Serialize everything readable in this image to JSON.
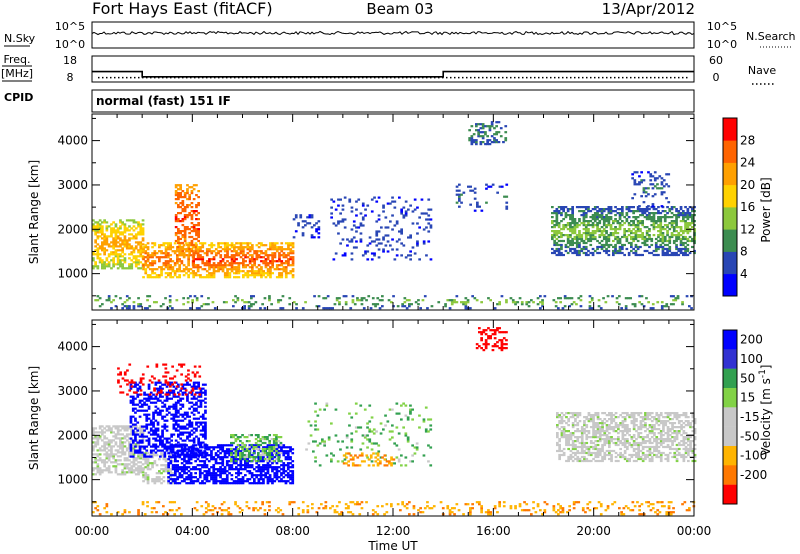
{
  "header": {
    "station": "Fort Hays East (fitACF)",
    "beam": "Beam 03",
    "date": "13/Apr/2012"
  },
  "noise_panel": {
    "left_label": "N.Sky",
    "right_label": "N.Search",
    "left_ticks": [
      "10^5",
      "10^0"
    ],
    "right_ticks": [
      "10^5",
      "10^0"
    ]
  },
  "freq_panel": {
    "left_label_1": "Freq.",
    "left_label_2": "[MHz]",
    "right_label": "Nave",
    "left_ticks": [
      "18",
      "8"
    ],
    "right_ticks": [
      "60",
      "0"
    ]
  },
  "cpid": {
    "label": "CPID",
    "mode_text": "normal (fast) 151 IF"
  },
  "axes": {
    "ylabel": "Slant Range [km]",
    "yticks": [
      "1000",
      "2000",
      "3000",
      "4000"
    ],
    "xlabel": "Time UT",
    "xticks": [
      "00:00",
      "04:00",
      "08:00",
      "12:00",
      "16:00",
      "20:00",
      "00:00"
    ]
  },
  "colorbars": {
    "power": {
      "label": "Power [dB]",
      "ticks": [
        "4",
        "8",
        "12",
        "16",
        "20",
        "24",
        "28"
      ],
      "colors": [
        "#0000ff",
        "#2946b4",
        "#3c8c50",
        "#8cc83c",
        "#ffd200",
        "#ffa000",
        "#ff6400",
        "#ff0000"
      ]
    },
    "velocity": {
      "label": "Velocity [m s^-1]",
      "ticks": [
        "200",
        "100",
        "50",
        "15",
        "-15",
        "-50",
        "-100",
        "-200"
      ],
      "colors": [
        "#0000ff",
        "#3232d2",
        "#32a050",
        "#82d246",
        "#c8c8c8",
        "#c8c8c8",
        "#ffb400",
        "#ff7800",
        "#ff0000"
      ]
    }
  },
  "chart_data": {
    "type": "heatmap",
    "title": "Fort Hays East (fitACF) Beam 03 13/Apr/2012",
    "xlabel": "Time UT",
    "ylabel": "Slant Range [km]",
    "xlim": [
      "00:00",
      "24:00"
    ],
    "ylim": [
      180,
      4600
    ],
    "freq_mhz_segments": [
      {
        "start": "00:00",
        "end": "02:00",
        "freq": 12
      },
      {
        "start": "02:00",
        "end": "14:00",
        "freq": 10
      },
      {
        "start": "14:00",
        "end": "24:00",
        "freq": 12
      }
    ],
    "nave_level": 10,
    "power_regions": [
      {
        "t_start": 0.0,
        "t_end": 2.0,
        "r_low": 1100,
        "r_high": 2200,
        "power_db": 14,
        "core_db": 22,
        "scatter": 0.55
      },
      {
        "t_start": 2.0,
        "t_end": 4.0,
        "r_low": 900,
        "r_high": 1700,
        "power_db": 18,
        "core_db": 26,
        "scatter": 0.55
      },
      {
        "t_start": 3.3,
        "t_end": 4.2,
        "r_low": 1400,
        "r_high": 3000,
        "power_db": 22,
        "core_db": 28,
        "scatter": 0.45
      },
      {
        "t_start": 4.0,
        "t_end": 8.0,
        "r_low": 900,
        "r_high": 1700,
        "power_db": 18,
        "core_db": 28,
        "scatter": 0.6
      },
      {
        "t_start": 8.0,
        "t_end": 9.0,
        "r_low": 1800,
        "r_high": 2300,
        "power_db": 4,
        "core_db": 6,
        "scatter": 0.18
      },
      {
        "t_start": 9.5,
        "t_end": 13.5,
        "r_low": 1300,
        "r_high": 2700,
        "power_db": 4,
        "core_db": 6,
        "scatter": 0.12
      },
      {
        "t_start": 14.5,
        "t_end": 16.5,
        "r_low": 2400,
        "r_high": 3000,
        "power_db": 4,
        "core_db": 8,
        "scatter": 0.15
      },
      {
        "t_start": 15.0,
        "t_end": 16.5,
        "r_low": 3900,
        "r_high": 4400,
        "power_db": 6,
        "core_db": 10,
        "scatter": 0.3
      },
      {
        "t_start": 18.3,
        "t_end": 24.0,
        "r_low": 1400,
        "r_high": 2500,
        "power_db": 6,
        "core_db": 14,
        "scatter": 0.55
      },
      {
        "t_start": 21.5,
        "t_end": 23.0,
        "r_low": 2500,
        "r_high": 3300,
        "power_db": 4,
        "core_db": 8,
        "scatter": 0.2
      },
      {
        "t_start": 0.0,
        "t_end": 24.0,
        "r_low": 200,
        "r_high": 500,
        "power_db": 6,
        "core_db": 14,
        "scatter": 0.18
      }
    ],
    "velocity_regions": [
      {
        "t_start": 0.0,
        "t_end": 2.0,
        "r_low": 1100,
        "r_high": 2200,
        "velocity": 0,
        "scatter": 0.55
      },
      {
        "t_start": 2.0,
        "t_end": 3.2,
        "r_low": 900,
        "r_high": 1600,
        "velocity": 0,
        "scatter": 0.5
      },
      {
        "t_start": 1.5,
        "t_end": 4.5,
        "r_low": 1500,
        "r_high": 3200,
        "velocity": 200,
        "scatter": 0.45
      },
      {
        "t_start": 3.0,
        "t_end": 8.0,
        "r_low": 900,
        "r_high": 1800,
        "velocity": 200,
        "scatter": 0.6
      },
      {
        "t_start": 5.5,
        "t_end": 7.5,
        "r_low": 1400,
        "r_high": 2000,
        "velocity": 30,
        "scatter": 0.45
      },
      {
        "t_start": 1.0,
        "t_end": 4.3,
        "r_low": 2900,
        "r_high": 3600,
        "velocity": -200,
        "scatter": 0.15
      },
      {
        "t_start": 8.5,
        "t_end": 13.5,
        "r_low": 1300,
        "r_high": 2700,
        "velocity": 30,
        "scatter": 0.1
      },
      {
        "t_start": 10.0,
        "t_end": 12.0,
        "r_low": 1300,
        "r_high": 1600,
        "velocity": -70,
        "scatter": 0.3
      },
      {
        "t_start": 15.3,
        "t_end": 16.5,
        "r_low": 3900,
        "r_high": 4400,
        "velocity": -200,
        "scatter": 0.35
      },
      {
        "t_start": 18.5,
        "t_end": 24.0,
        "r_low": 1400,
        "r_high": 2500,
        "velocity": 0,
        "scatter": 0.55
      },
      {
        "t_start": 0.0,
        "t_end": 24.0,
        "r_low": 200,
        "r_high": 500,
        "velocity": -70,
        "scatter": 0.18
      }
    ]
  }
}
